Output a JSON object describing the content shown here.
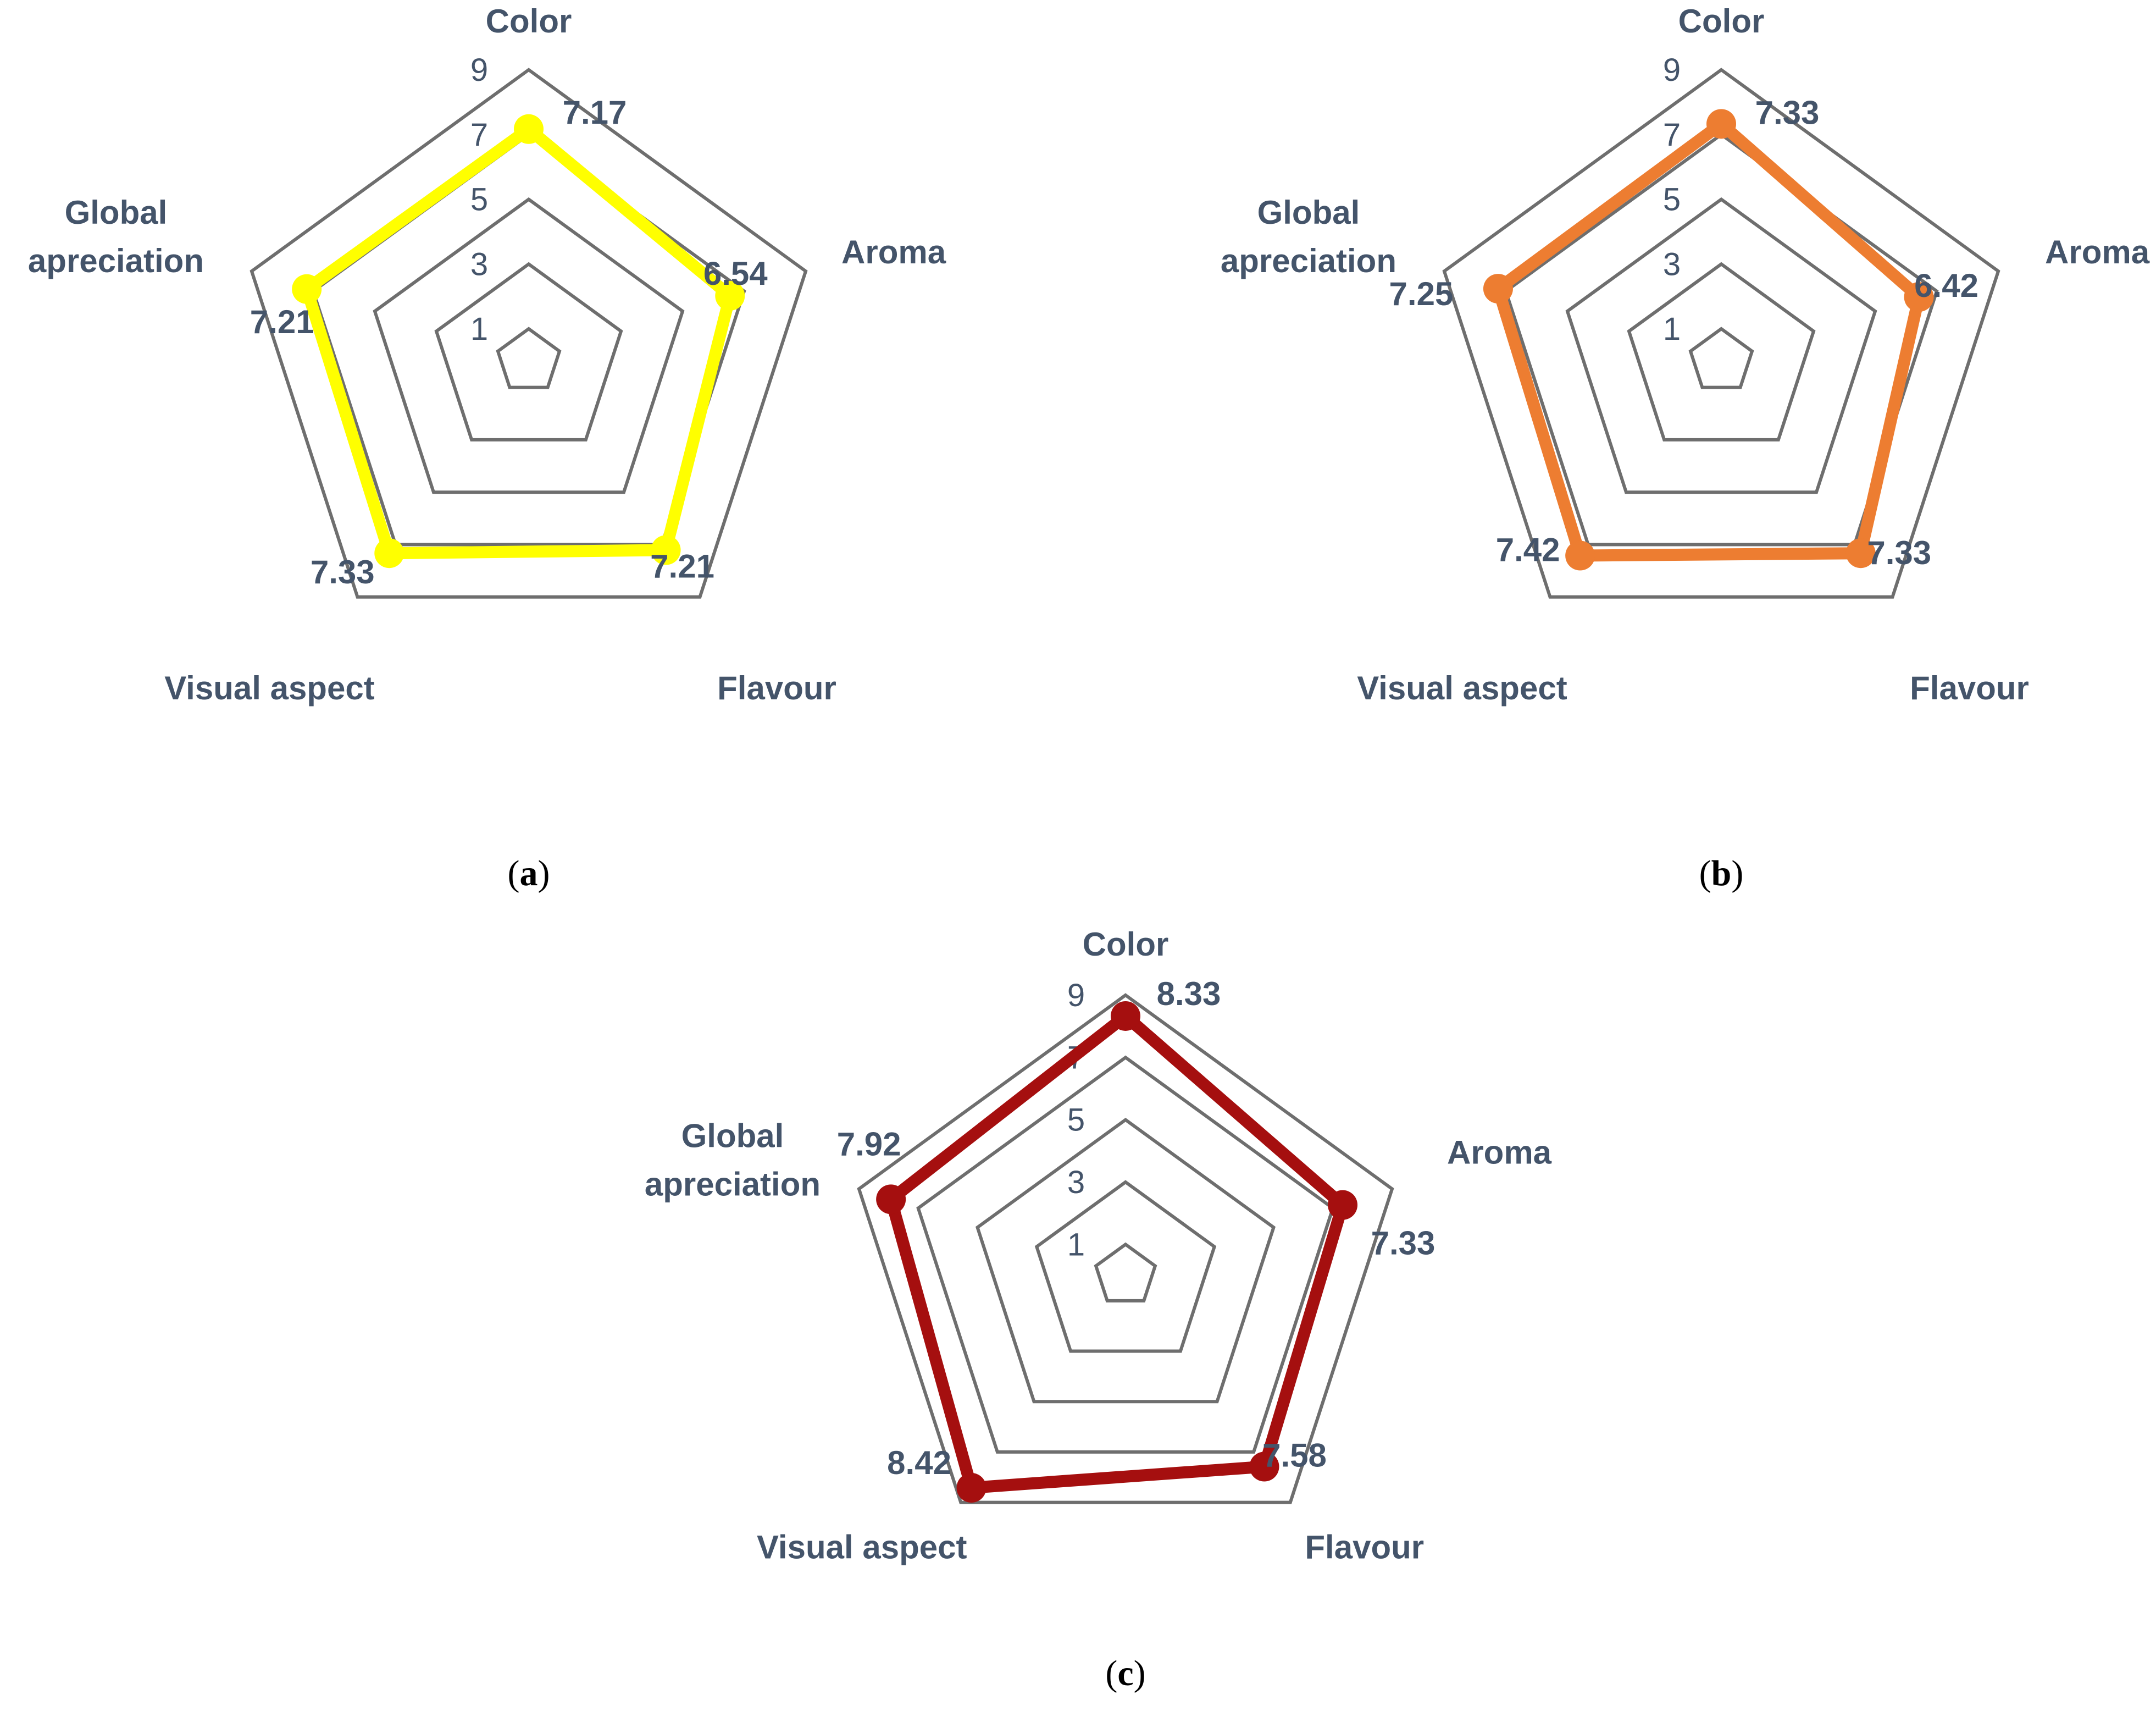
{
  "chart_data": [
    {
      "type": "radar",
      "panel_label": "a",
      "axes": [
        "Color",
        "Aroma",
        "Flavour",
        "Visual aspect",
        "Global apreciation"
      ],
      "axis_label_lines": [
        [
          "Color"
        ],
        [
          "Aroma"
        ],
        [
          "Flavour"
        ],
        [
          "Visual aspect"
        ],
        [
          "Global",
          "apreciation"
        ]
      ],
      "ticks": [
        1,
        3,
        5,
        7,
        9
      ],
      "rlim": [
        0,
        9
      ],
      "values": [
        7.17,
        6.54,
        7.21,
        7.33,
        7.21
      ],
      "value_labels": [
        "7.17",
        "6.54",
        "7.21",
        "7.33",
        "7.21"
      ],
      "color": "#FFFF00",
      "grid_color": "#6E6E6E"
    },
    {
      "type": "radar",
      "panel_label": "b",
      "axes": [
        "Color",
        "Aroma",
        "Flavour",
        "Visual aspect",
        "Global apreciation"
      ],
      "axis_label_lines": [
        [
          "Color"
        ],
        [
          "Aroma"
        ],
        [
          "Flavour"
        ],
        [
          "Visual aspect"
        ],
        [
          "Global",
          "apreciation"
        ]
      ],
      "ticks": [
        1,
        3,
        5,
        7,
        9
      ],
      "rlim": [
        0,
        9
      ],
      "values": [
        7.33,
        6.42,
        7.33,
        7.42,
        7.25
      ],
      "value_labels": [
        "7.33",
        "6.42",
        "7.33",
        "7.42",
        "7.25"
      ],
      "color": "#ED7D31",
      "grid_color": "#6E6E6E"
    },
    {
      "type": "radar",
      "panel_label": "c",
      "axes": [
        "Color",
        "Aroma",
        "Flavour",
        "Visual aspect",
        "Global apreciation"
      ],
      "axis_label_lines": [
        [
          "Color"
        ],
        [
          "Aroma"
        ],
        [
          "Flavour"
        ],
        [
          "Visual aspect"
        ],
        [
          "Global",
          "apreciation"
        ]
      ],
      "ticks": [
        1,
        3,
        5,
        7,
        9
      ],
      "rlim": [
        0,
        9
      ],
      "values": [
        8.33,
        7.33,
        7.58,
        8.42,
        7.92
      ],
      "value_labels": [
        "8.33",
        "7.33",
        "7.58",
        "8.42",
        "7.92"
      ],
      "color": "#A50F0F",
      "grid_color": "#6E6E6E"
    }
  ]
}
